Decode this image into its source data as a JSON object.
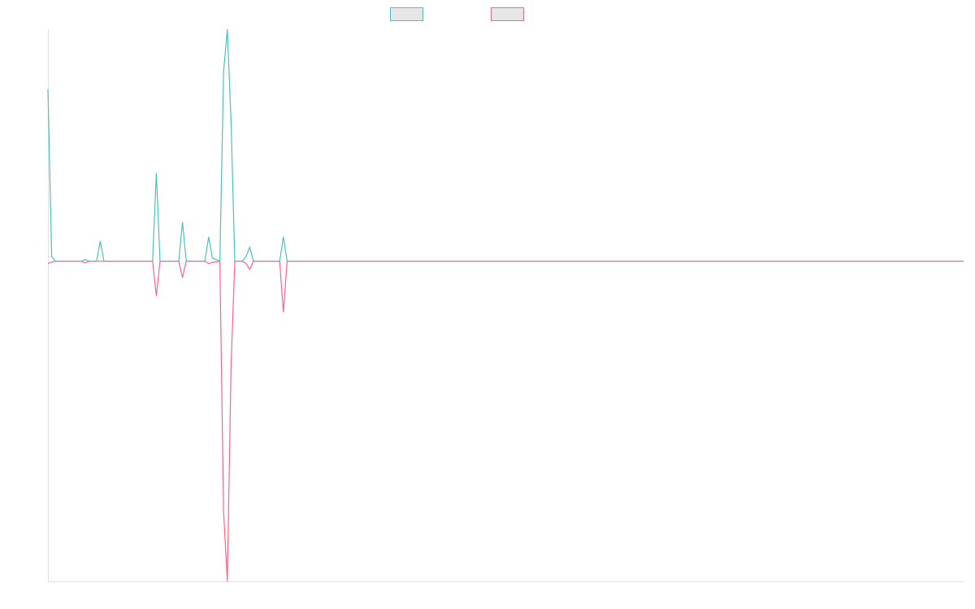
{
  "chart_data": {
    "type": "line",
    "x": [
      0,
      1,
      2,
      9,
      10,
      11,
      13,
      14,
      15,
      28,
      29,
      30,
      35,
      36,
      37,
      42,
      43,
      44,
      46,
      47,
      48,
      49,
      50,
      52,
      53,
      54,
      55,
      62,
      63,
      64,
      245
    ],
    "xlim": [
      0,
      245
    ],
    "ylim": [
      -138,
      100
    ],
    "series": [
      {
        "color": "#4bc0c0",
        "values": [
          74,
          2,
          0,
          0,
          0.7,
          0,
          0,
          8.7,
          0,
          0,
          38,
          0,
          0,
          16.8,
          0,
          0,
          10.5,
          1.4,
          0,
          81.8,
          100,
          60,
          0,
          0,
          2,
          6,
          0,
          0,
          10.5,
          0,
          0
        ]
      },
      {
        "color": "#ff6384",
        "values": [
          -1,
          -0.3,
          0,
          0,
          -0.7,
          0,
          0,
          0,
          0,
          0,
          -15,
          0,
          0,
          -7,
          0,
          0,
          -1,
          -0.5,
          0,
          -108,
          -138,
          -45,
          0,
          0,
          -1,
          -3.5,
          0,
          0,
          -22,
          0,
          0
        ]
      }
    ]
  }
}
